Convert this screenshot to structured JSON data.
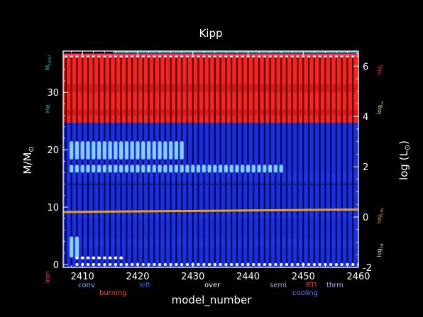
{
  "colors": {
    "background": "#000000",
    "frame": "#ffffff",
    "burning_red": "#ff2020",
    "burning_red_alt": "#e01010",
    "nonburning_blue": "#1a2ee8",
    "nonburning_blue_alt": "#1f35f0",
    "convection": "#87cefa",
    "mass_top_line": "#ff3060",
    "star_mass_band": "#1f9f9f",
    "log_he_line": "#e6a020",
    "text_white": "#ffffff",
    "label_red": "#ff3030",
    "label_teal": "#20b0b0",
    "label_orange": "#e8a030",
    "label_pale": "#f0e0a0",
    "legend_conv": "#60c0ff",
    "legend_burning": "#ff4040",
    "legend_left": "#4060ff",
    "legend_over": "#ffffff",
    "legend_semi": "#a0b0c0",
    "legend_rti": "#ff3030",
    "legend_cooling": "#6080ff",
    "legend_thrm": "#c0a0ff"
  },
  "chart_data": {
    "type": "area",
    "title": "Kipp",
    "xlabel": "model_number",
    "ylabel": "M/M⊙",
    "y2label": "log (L⊙)",
    "xlim": [
      2406.5,
      2460
    ],
    "ylim": [
      -0.5,
      37.2
    ],
    "y2lim": [
      -2,
      6.6
    ],
    "x_ticks": [
      2410,
      2420,
      2430,
      2440,
      2450,
      2460
    ],
    "y_ticks": [
      0,
      10,
      20,
      30
    ],
    "y2_ticks": [
      -2,
      0,
      2,
      4,
      6
    ],
    "grid": false,
    "burning_region_bottom": 24.7,
    "star_mass": 36.7,
    "core_boundary": 14.0,
    "log_he_line": {
      "name": "logL_He",
      "values_x": [
        2406.5,
        2460
      ],
      "values_y2": [
        0.2,
        0.3
      ]
    },
    "convective_zones": [
      {
        "name": "upper-shell",
        "x_start": 2407.5,
        "x_end": 2428.5,
        "m_bottom": 18.3,
        "m_top": 21.5
      },
      {
        "name": "mid-shell",
        "x_start": 2407.5,
        "x_end": 2446,
        "m_bottom": 16.0,
        "m_top": 17.4
      },
      {
        "name": "core",
        "x_start": 2407.5,
        "x_end": 2409,
        "m_bottom": 1.2,
        "m_top": 4.9
      }
    ],
    "right_axis_labels": [
      "logL",
      "logL_v",
      "logL_He",
      "logL_H"
    ],
    "left_axis_labels": [
      "M_total",
      "He",
      "Iron"
    ],
    "legend": [
      "conv",
      "burning",
      "left",
      "over",
      "semi",
      "RTI",
      "cooling",
      "thrm"
    ]
  },
  "labels": {
    "title": "Kipp",
    "xlabel": "model_number",
    "ylabel": "M/M",
    "ylabel_sub": "⊙",
    "y2label": "log (L",
    "y2label_sub": "⊙",
    "y2label_close": ")",
    "left_m_total": "M",
    "left_m_total_sub": "total",
    "left_he": "He",
    "left_iron": "Iron",
    "right_logL": "log",
    "right_logL_sub": "L",
    "right_logLv": "log",
    "right_logLv_sub": "L",
    "right_logLv_subsub": "v",
    "right_logLHe": "log",
    "right_logLHe_sub": "L",
    "right_logLHe_subsub": "He",
    "right_logLH": "log",
    "right_logLH_sub": "L",
    "right_logLH_subsub": "H"
  },
  "legend_items": {
    "conv": "conv",
    "burning": "burning",
    "left": "left",
    "over": "over",
    "semi": "semi",
    "rti": "RTI",
    "cooling": "cooling",
    "thrm": "thrm"
  }
}
